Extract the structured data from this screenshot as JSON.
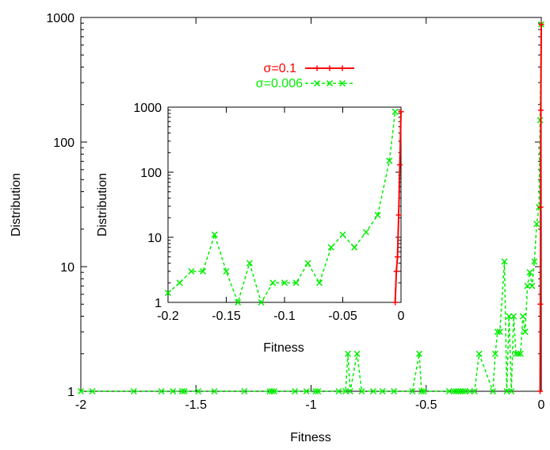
{
  "chart_data": [
    {
      "id": "main",
      "type": "line",
      "title": "",
      "xlabel": "Fitness",
      "ylabel": "Distribution",
      "xlim": [
        -2,
        0
      ],
      "ylim": [
        1,
        1000
      ],
      "yscale": "log",
      "xticks": [
        -2,
        -1.5,
        -1,
        -0.5,
        0
      ],
      "xtick_labels": [
        "-2",
        "-1.5",
        "-1",
        "-0.5",
        "0"
      ],
      "yticks": [
        1,
        10,
        100,
        1000
      ],
      "ytick_labels": [
        "1",
        "10",
        "100",
        "1000"
      ],
      "grid": false,
      "legend_position": "top-center",
      "series": [
        {
          "name": "σ=0.1",
          "color": "#ff0000",
          "style": "solid",
          "marker": "plus",
          "points": [
            [
              -0.005,
              1
            ],
            [
              -0.004,
              5
            ],
            [
              -0.003,
              30
            ],
            [
              -0.002,
              180
            ],
            [
              0,
              880
            ]
          ]
        },
        {
          "name": "σ=0.006",
          "color": "#00ee00",
          "style": "dashed",
          "marker": "x",
          "points": [
            [
              -2.0,
              1
            ],
            [
              -1.95,
              1
            ],
            [
              -1.77,
              1
            ],
            [
              -1.65,
              1
            ],
            [
              -1.6,
              1
            ],
            [
              -1.56,
              1
            ],
            [
              -1.55,
              1
            ],
            [
              -1.49,
              1
            ],
            [
              -1.42,
              1
            ],
            [
              -1.29,
              1
            ],
            [
              -1.18,
              1
            ],
            [
              -1.17,
              1
            ],
            [
              -1.16,
              1
            ],
            [
              -1.07,
              1
            ],
            [
              -1.02,
              1
            ],
            [
              -0.98,
              1
            ],
            [
              -0.97,
              1
            ],
            [
              -0.88,
              1
            ],
            [
              -0.85,
              1
            ],
            [
              -0.84,
              2
            ],
            [
              -0.83,
              1
            ],
            [
              -0.8,
              2
            ],
            [
              -0.78,
              1
            ],
            [
              -0.73,
              1
            ],
            [
              -0.69,
              1
            ],
            [
              -0.64,
              1
            ],
            [
              -0.56,
              1
            ],
            [
              -0.53,
              2
            ],
            [
              -0.52,
              1
            ],
            [
              -0.51,
              1
            ],
            [
              -0.4,
              1
            ],
            [
              -0.38,
              1
            ],
            [
              -0.37,
              1
            ],
            [
              -0.36,
              1
            ],
            [
              -0.35,
              1
            ],
            [
              -0.34,
              1
            ],
            [
              -0.33,
              1
            ],
            [
              -0.31,
              1
            ],
            [
              -0.29,
              1
            ],
            [
              -0.27,
              2
            ],
            [
              -0.21,
              1
            ],
            [
              -0.2,
              2
            ],
            [
              -0.19,
              3
            ],
            [
              -0.18,
              3
            ],
            [
              -0.16,
              11
            ],
            [
              -0.15,
              1
            ],
            [
              -0.14,
              4
            ],
            [
              -0.13,
              1
            ],
            [
              -0.12,
              4
            ],
            [
              -0.11,
              2
            ],
            [
              -0.1,
              2
            ],
            [
              -0.09,
              2
            ],
            [
              -0.08,
              4
            ],
            [
              -0.07,
              3
            ],
            [
              -0.06,
              7
            ],
            [
              -0.05,
              9
            ],
            [
              -0.04,
              7
            ],
            [
              -0.03,
              11
            ],
            [
              -0.02,
              22
            ],
            [
              -0.01,
              30
            ],
            [
              -0.005,
              150
            ],
            [
              0,
              880
            ]
          ]
        }
      ]
    },
    {
      "id": "inset",
      "type": "line",
      "title": "",
      "xlabel": "Fitness",
      "ylabel": "Distribution",
      "xlim": [
        -0.2,
        0
      ],
      "ylim": [
        1,
        1000
      ],
      "yscale": "log",
      "xticks": [
        -0.2,
        -0.15,
        -0.1,
        -0.05,
        0
      ],
      "xtick_labels": [
        "-0.2",
        "-0.15",
        "-0.1",
        "-0.05",
        "0"
      ],
      "yticks": [
        1,
        10,
        100,
        1000
      ],
      "ytick_labels": [
        "1",
        "10",
        "100",
        "1000"
      ],
      "grid": false,
      "series": [
        {
          "name": "σ=0.1",
          "color": "#ff0000",
          "style": "solid",
          "marker": "plus",
          "points": [
            [
              -0.005,
              1
            ],
            [
              -0.004,
              3
            ],
            [
              -0.003,
              5
            ],
            [
              -0.002,
              22
            ],
            [
              -0.001,
              130
            ],
            [
              0,
              850
            ]
          ]
        },
        {
          "name": "σ=0.006",
          "color": "#00ee00",
          "style": "dashed",
          "marker": "x",
          "points": [
            [
              -0.2,
              1.4
            ],
            [
              -0.19,
              2
            ],
            [
              -0.18,
              3
            ],
            [
              -0.17,
              3
            ],
            [
              -0.16,
              11
            ],
            [
              -0.15,
              3
            ],
            [
              -0.14,
              1
            ],
            [
              -0.13,
              4
            ],
            [
              -0.12,
              1
            ],
            [
              -0.11,
              2
            ],
            [
              -0.1,
              2
            ],
            [
              -0.09,
              2
            ],
            [
              -0.08,
              4
            ],
            [
              -0.07,
              2
            ],
            [
              -0.06,
              7
            ],
            [
              -0.05,
              11
            ],
            [
              -0.04,
              7
            ],
            [
              -0.03,
              12
            ],
            [
              -0.02,
              22
            ],
            [
              -0.01,
              150
            ],
            [
              -0.005,
              850
            ]
          ]
        }
      ]
    }
  ]
}
